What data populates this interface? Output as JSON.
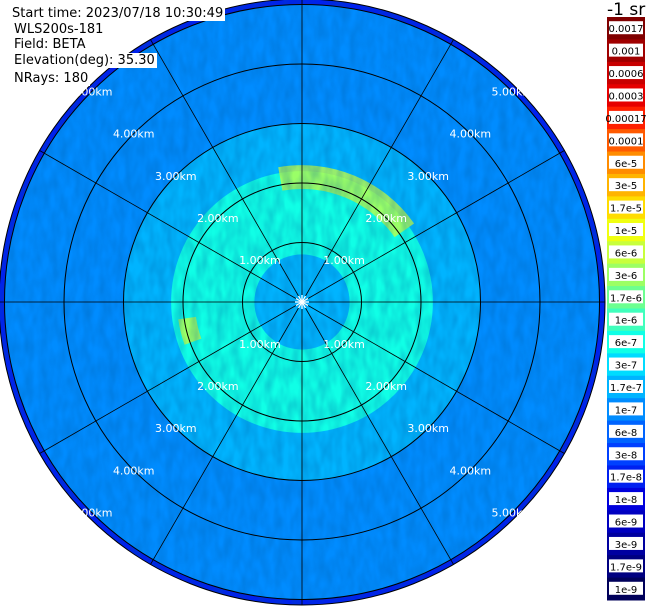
{
  "info": {
    "start_time": "Start time: 2023/07/18 10:30:49",
    "instrument": "WLS200s-181",
    "field": "Field: BETA",
    "elevation": "Elevation(deg): 35.30",
    "nrays": "NRays: 180"
  },
  "chart_data": {
    "type": "polar-ppi",
    "field": "BETA",
    "unit_label": "-1 sr",
    "max_range_km": 5.0,
    "range_rings_km": [
      1,
      2,
      3,
      4,
      5
    ],
    "ring_labels": [
      "1.00km",
      "2.00km",
      "3.00km",
      "4.00km",
      "5.00km"
    ],
    "spoke_angles_deg": [
      0,
      30,
      60,
      90,
      120,
      150,
      180,
      210,
      240,
      270,
      300,
      330
    ],
    "nrays": 180,
    "colorbar": {
      "ticks": [
        "0.0017",
        "0.001",
        "0.0006",
        "0.0003",
        "0.00017",
        "0.0001",
        "6e-5",
        "3e-5",
        "1.7e-5",
        "1e-5",
        "6e-6",
        "3e-6",
        "1.7e-6",
        "1e-6",
        "6e-7",
        "3e-7",
        "1.7e-7",
        "1e-7",
        "6e-8",
        "3e-8",
        "1.7e-8",
        "1e-8",
        "6e-9",
        "3e-9",
        "1.7e-9",
        "1e-9"
      ],
      "colors": [
        "#800000",
        "#a00000",
        "#c80000",
        "#e60000",
        "#ff2000",
        "#ff5a00",
        "#ff8c00",
        "#ffb400",
        "#ffdc00",
        "#f0ff10",
        "#c8ff3c",
        "#9cff64",
        "#6cff90",
        "#40ffbc",
        "#10ffe6",
        "#00dcff",
        "#00b4ff",
        "#008cff",
        "#0064ff",
        "#0040ff",
        "#0020f0",
        "#0000dc",
        "#0000c0",
        "#0000a0",
        "#000080",
        "#00005a"
      ]
    },
    "regions": [
      {
        "name": "inner-core",
        "range_km": [
          0,
          0.8
        ],
        "level": "1.7e-7"
      },
      {
        "name": "inner-annulus",
        "range_km": [
          0.8,
          2.2
        ],
        "level": "6e-7"
      },
      {
        "name": "mid-annulus",
        "range_km": [
          2.2,
          3.0
        ],
        "level": "1.7e-7"
      },
      {
        "name": "outer-annulus",
        "range_km": [
          3.0,
          5.0
        ],
        "level": "1e-7"
      },
      {
        "name": "edge-ring",
        "range_km": [
          5.0,
          5.1
        ],
        "level": "1.7e-8"
      },
      {
        "name": "aerosol-patch-north",
        "azimuth_deg": [
          -10,
          55
        ],
        "range_km": [
          1.9,
          2.3
        ],
        "level": "6e-6"
      },
      {
        "name": "aerosol-patch-west",
        "azimuth_deg": [
          250,
          262
        ],
        "range_km": [
          1.8,
          2.1
        ],
        "level": "6e-6"
      }
    ],
    "grid": true
  }
}
